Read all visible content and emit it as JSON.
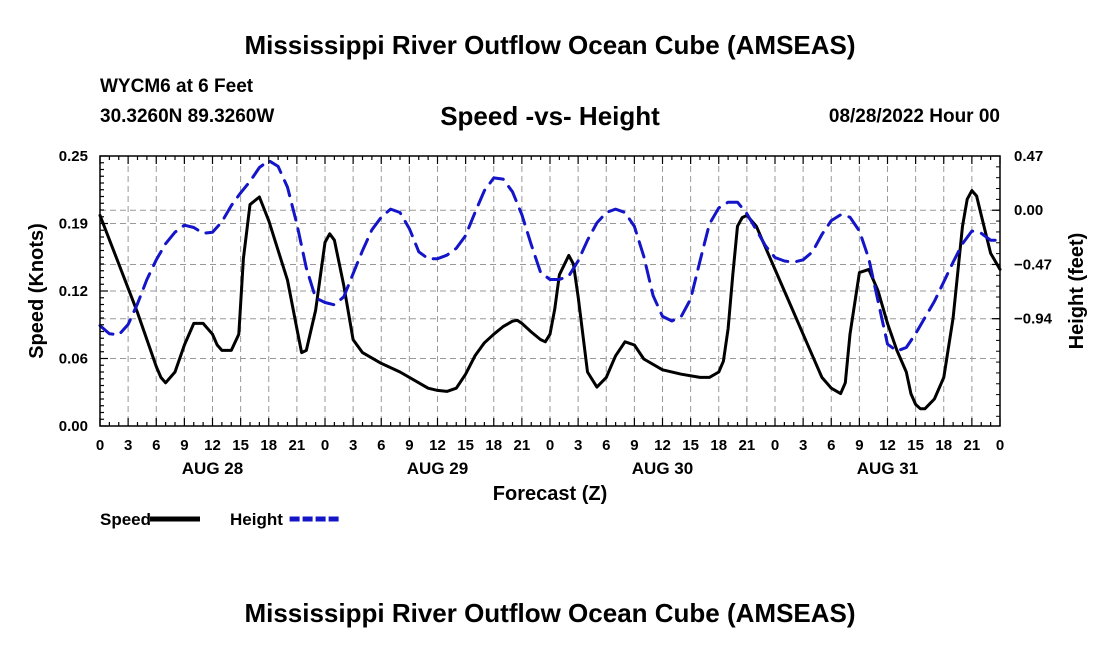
{
  "header": {
    "title": "Mississippi River Outflow Ocean Cube (AMSEAS)",
    "station": "WYCM6 at 6 Feet",
    "coords": "30.3260N  89.3260W",
    "subtitle": "Speed -vs- Height",
    "datestamp": "08/28/2022 Hour 00",
    "footer_title": "Mississippi River Outflow Ocean Cube (AMSEAS)"
  },
  "chart_data": {
    "type": "line",
    "title": "Speed -vs- Height",
    "xlabel": "Forecast (Z)",
    "ylabel": "Speed (Knots)",
    "y2label": "Height (feet)",
    "xlim": [
      0,
      96
    ],
    "ylim": [
      0,
      0.25
    ],
    "y2lim": [
      -1.87,
      0.47
    ],
    "xtick_positions": [
      0,
      3,
      6,
      9,
      12,
      15,
      18,
      21,
      24,
      27,
      30,
      33,
      36,
      39,
      42,
      45,
      48,
      51,
      54,
      57,
      60,
      63,
      66,
      69,
      72,
      75,
      78,
      81,
      84,
      87,
      90,
      93,
      96
    ],
    "xtick_labels": [
      "0",
      "3",
      "6",
      "9",
      "12",
      "15",
      "18",
      "21",
      "0",
      "3",
      "6",
      "9",
      "12",
      "15",
      "18",
      "21",
      "0",
      "3",
      "6",
      "9",
      "12",
      "15",
      "18",
      "21",
      "0",
      "3",
      "6",
      "9",
      "12",
      "15",
      "18",
      "21",
      "0"
    ],
    "date_labels": [
      {
        "x": 12,
        "label": "AUG 28"
      },
      {
        "x": 36,
        "label": "AUG 29"
      },
      {
        "x": 60,
        "label": "AUG 30"
      },
      {
        "x": 84,
        "label": "AUG 31"
      }
    ],
    "yticks": [
      {
        "v": 0.0,
        "label": "0.00"
      },
      {
        "v": 0.0625,
        "label": "0.06"
      },
      {
        "v": 0.125,
        "label": "0.12"
      },
      {
        "v": 0.1875,
        "label": "0.19"
      },
      {
        "v": 0.25,
        "label": "0.25"
      }
    ],
    "y2ticks": [
      {
        "v": 0.47,
        "label": "0.47"
      },
      {
        "v": 0.0,
        "label": "0.00"
      },
      {
        "v": -0.47,
        "label": "−0.47"
      },
      {
        "v": -0.94,
        "label": "−0.94"
      }
    ],
    "grid": true,
    "legend": [
      {
        "name": "Speed",
        "color": "#000000",
        "dash": "solid"
      },
      {
        "name": "Height",
        "color": "#1414c8",
        "dash": "dashed"
      }
    ],
    "series": [
      {
        "name": "Speed",
        "axis": "left",
        "color": "#000000",
        "x": [
          0,
          2,
          4,
          5,
          6,
          6.5,
          7,
          8,
          9,
          10,
          11,
          12,
          12.5,
          13,
          14,
          14.8,
          15.3,
          16,
          17,
          18,
          20,
          21,
          21.5,
          22,
          23,
          24,
          24.5,
          25,
          26,
          27,
          28,
          30,
          32,
          34,
          35,
          36,
          37,
          38,
          39,
          40,
          41,
          42,
          43,
          44,
          44.5,
          45,
          46,
          47,
          47.5,
          48,
          48.5,
          49,
          50,
          50.5,
          51,
          52,
          53,
          54,
          54.5,
          55,
          56,
          57,
          58,
          60,
          62,
          64,
          65,
          66,
          66.5,
          67,
          67.5,
          68,
          68.5,
          69,
          70,
          72,
          74,
          75,
          76,
          77,
          78,
          79,
          79.5,
          80,
          81,
          82,
          83,
          84,
          85,
          86,
          86.5,
          87,
          87.5,
          88,
          89,
          90,
          91,
          92,
          92.5,
          93,
          93.5,
          94,
          95,
          96
        ],
        "y": [
          0.195,
          0.15,
          0.105,
          0.08,
          0.055,
          0.045,
          0.04,
          0.05,
          0.075,
          0.095,
          0.095,
          0.085,
          0.075,
          0.07,
          0.07,
          0.085,
          0.155,
          0.205,
          0.212,
          0.19,
          0.135,
          0.09,
          0.068,
          0.07,
          0.107,
          0.17,
          0.178,
          0.172,
          0.13,
          0.08,
          0.068,
          0.058,
          0.05,
          0.04,
          0.035,
          0.033,
          0.032,
          0.035,
          0.048,
          0.065,
          0.077,
          0.085,
          0.092,
          0.097,
          0.098,
          0.095,
          0.087,
          0.08,
          0.078,
          0.085,
          0.108,
          0.14,
          0.158,
          0.15,
          0.12,
          0.05,
          0.036,
          0.045,
          0.055,
          0.065,
          0.078,
          0.075,
          0.062,
          0.052,
          0.048,
          0.045,
          0.045,
          0.05,
          0.06,
          0.09,
          0.14,
          0.185,
          0.193,
          0.195,
          0.185,
          0.145,
          0.105,
          0.085,
          0.065,
          0.045,
          0.035,
          0.03,
          0.04,
          0.085,
          0.142,
          0.145,
          0.125,
          0.095,
          0.07,
          0.05,
          0.03,
          0.02,
          0.016,
          0.016,
          0.025,
          0.045,
          0.1,
          0.185,
          0.21,
          0.218,
          0.213,
          0.195,
          0.16,
          0.145
        ],
        "labels_note": ""
      },
      {
        "name": "Height",
        "axis": "right",
        "color": "#1414c8",
        "x": [
          0,
          1,
          2,
          3,
          4,
          5,
          6,
          7,
          8,
          9,
          10,
          11,
          12,
          13,
          14,
          15,
          16,
          17,
          18,
          19,
          20,
          21,
          22,
          23,
          24,
          25,
          26,
          27,
          28,
          29,
          30,
          31,
          32,
          33,
          34,
          35,
          36,
          37,
          38,
          39,
          40,
          41,
          42,
          43,
          44,
          45,
          46,
          47,
          48,
          49,
          50,
          51,
          52,
          53,
          54,
          55,
          56,
          57,
          58,
          59,
          60,
          61,
          62,
          63,
          64,
          65,
          66,
          67,
          68,
          69,
          70,
          71,
          72,
          73,
          74,
          75,
          76,
          77,
          78,
          79,
          80,
          81,
          82,
          83,
          84,
          85,
          86,
          87,
          88,
          89,
          90,
          91,
          92,
          93,
          94,
          95,
          96
        ],
        "y": [
          -1.0,
          -1.07,
          -1.08,
          -0.99,
          -0.81,
          -0.6,
          -0.43,
          -0.29,
          -0.19,
          -0.13,
          -0.15,
          -0.2,
          -0.19,
          -0.1,
          0.04,
          0.15,
          0.25,
          0.37,
          0.43,
          0.38,
          0.2,
          -0.12,
          -0.5,
          -0.76,
          -0.8,
          -0.82,
          -0.75,
          -0.55,
          -0.35,
          -0.17,
          -0.06,
          0.01,
          -0.02,
          -0.16,
          -0.36,
          -0.42,
          -0.42,
          -0.39,
          -0.33,
          -0.22,
          -0.02,
          0.17,
          0.28,
          0.27,
          0.16,
          -0.04,
          -0.3,
          -0.54,
          -0.6,
          -0.6,
          -0.57,
          -0.44,
          -0.26,
          -0.11,
          -0.02,
          0.01,
          -0.02,
          -0.14,
          -0.4,
          -0.74,
          -0.92,
          -0.96,
          -0.92,
          -0.77,
          -0.44,
          -0.12,
          0.02,
          0.07,
          0.07,
          -0.03,
          -0.17,
          -0.31,
          -0.41,
          -0.44,
          -0.45,
          -0.43,
          -0.36,
          -0.21,
          -0.09,
          -0.04,
          -0.06,
          -0.18,
          -0.42,
          -0.79,
          -1.16,
          -1.22,
          -1.19,
          -1.07,
          -0.93,
          -0.79,
          -0.62,
          -0.45,
          -0.29,
          -0.18,
          -0.2,
          -0.26,
          -0.26
        ]
      }
    ]
  }
}
